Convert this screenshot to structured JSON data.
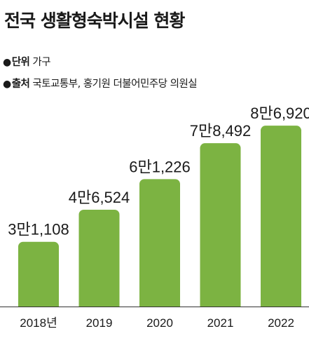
{
  "header": {
    "title": "전국 생활형숙박시설 현황",
    "unit_key": "단위",
    "unit_value": "가구",
    "source_key": "출처",
    "source_value": "국토교통부, 홍기원 더불어민주당 의원실"
  },
  "chart_data": {
    "type": "bar",
    "title": "전국 생활형숙박시설 현황",
    "unit": "가구",
    "categories": [
      "2018년",
      "2019",
      "2020",
      "2021",
      "2022"
    ],
    "values": [
      31108,
      46524,
      61226,
      78492,
      86920
    ],
    "value_labels": [
      "3만1,108",
      "4만6,524",
      "6만1,226",
      "7만8,492",
      "8만6,920"
    ],
    "ylim": [
      0,
      90000
    ],
    "grid": false,
    "legend": "none",
    "bar_color": "#7cb342"
  }
}
